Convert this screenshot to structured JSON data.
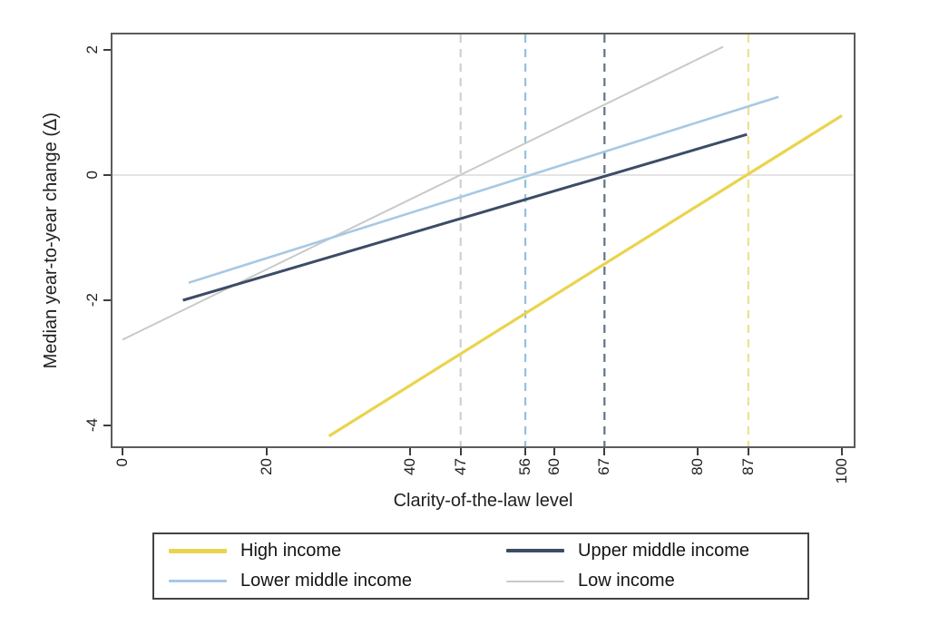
{
  "figure": {
    "background": "#ffffff",
    "text_color": "#1a1a1a",
    "frame_color": "#5b5b5b"
  },
  "chart_data": {
    "type": "line",
    "title": "",
    "xlabel": "Clarity-of-the-law level",
    "ylabel": "Median year-to-year change (Δ)",
    "xlim": [
      -1.6,
      102
    ],
    "ylim": [
      -4.4,
      2.3
    ],
    "x_ticks": [
      0,
      20,
      40,
      47,
      56,
      60,
      67,
      80,
      87,
      100
    ],
    "y_ticks": [
      2,
      0,
      -2,
      -4
    ],
    "grid": "zero-line-only",
    "zero_line": {
      "y": 0,
      "color": "#dcdcdc"
    },
    "legend_position": "bottom",
    "series": [
      {
        "name": "High income",
        "color": "#e9d44d",
        "line_width": 3.2,
        "swatch_height": 5,
        "points": [
          [
            28.7,
            -4.17
          ],
          [
            100,
            0.95
          ]
        ],
        "ref_line": {
          "x": 87,
          "color": "#ebe193",
          "style": "dashed"
        }
      },
      {
        "name": "Upper middle income",
        "color": "#3d4c66",
        "line_width": 3,
        "swatch_height": 4,
        "points": [
          [
            8.4,
            -2.0
          ],
          [
            86.8,
            0.65
          ]
        ],
        "ref_line": {
          "x": 67,
          "color": "#5f7388",
          "style": "dashed"
        }
      },
      {
        "name": "Lower middle income",
        "color": "#a6c9e5",
        "line_width": 2.6,
        "swatch_height": 3,
        "points": [
          [
            9.2,
            -1.72
          ],
          [
            91.2,
            1.25
          ]
        ],
        "ref_line": {
          "x": 56,
          "color": "#93c1dd",
          "style": "dashed"
        }
      },
      {
        "name": "Low income",
        "color": "#c9c9c9",
        "line_width": 2,
        "swatch_height": 2,
        "points": [
          [
            0,
            -2.63
          ],
          [
            83.5,
            2.05
          ]
        ],
        "ref_line": {
          "x": 47,
          "color": "#cfcfcf",
          "style": "dashed"
        }
      }
    ]
  }
}
